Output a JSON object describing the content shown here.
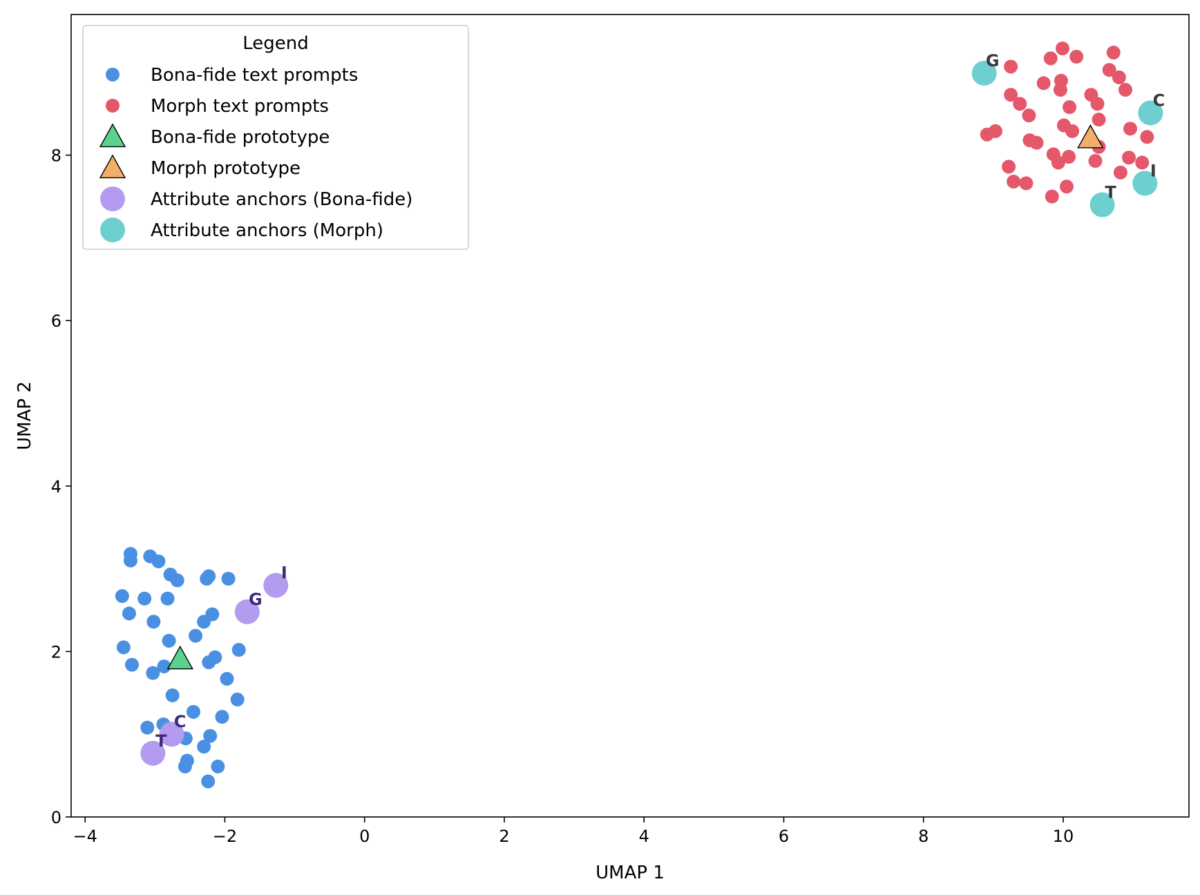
{
  "chart_data": {
    "type": "scatter",
    "xlabel": "UMAP 1",
    "ylabel": "UMAP 2",
    "xlim": [
      -4.2,
      11.8
    ],
    "ylim": [
      0,
      9.7
    ],
    "x_ticks": [
      -4,
      -2,
      0,
      2,
      4,
      6,
      8,
      10
    ],
    "y_ticks": [
      0,
      2,
      4,
      6,
      8
    ],
    "x_tick_labels": [
      "−4",
      "−2",
      "0",
      "2",
      "4",
      "6",
      "8",
      "10"
    ],
    "y_tick_labels": [
      "0",
      "2",
      "4",
      "6",
      "8"
    ],
    "grid": false,
    "legend": {
      "title": "Legend",
      "placement": "top-left",
      "entries": [
        {
          "label": "Bona-fide text prompts",
          "marker": "circle-small",
          "color": "#4a90e2"
        },
        {
          "label": "Morph text prompts",
          "marker": "circle-small",
          "color": "#e5576a"
        },
        {
          "label": "Bona-fide prototype",
          "marker": "triangle",
          "color": "#5bd18e"
        },
        {
          "label": "Morph prototype",
          "marker": "triangle",
          "color": "#f0b06a"
        },
        {
          "label": "Attribute anchors (Bona-fide)",
          "marker": "circle-large",
          "color": "#b39bf0"
        },
        {
          "label": "Attribute anchors (Morph)",
          "marker": "circle-large",
          "color": "#6dcfcf"
        }
      ]
    },
    "series": [
      {
        "name": "Bona-fide text prompts",
        "color": "#4a90e2",
        "points": [
          [
            -3.35,
            3.18
          ],
          [
            -3.35,
            3.1
          ],
          [
            -3.07,
            3.15
          ],
          [
            -2.95,
            3.09
          ],
          [
            -2.78,
            2.93
          ],
          [
            -2.68,
            2.86
          ],
          [
            -2.26,
            2.88
          ],
          [
            -2.23,
            2.91
          ],
          [
            -1.95,
            2.88
          ],
          [
            -3.47,
            2.67
          ],
          [
            -3.15,
            2.64
          ],
          [
            -2.82,
            2.64
          ],
          [
            -3.37,
            2.46
          ],
          [
            -3.02,
            2.36
          ],
          [
            -2.3,
            2.36
          ],
          [
            -2.18,
            2.45
          ],
          [
            -2.8,
            2.13
          ],
          [
            -2.42,
            2.19
          ],
          [
            -3.45,
            2.05
          ],
          [
            -1.8,
            2.02
          ],
          [
            -3.33,
            1.84
          ],
          [
            -2.87,
            1.82
          ],
          [
            -2.23,
            1.87
          ],
          [
            -2.14,
            1.93
          ],
          [
            -3.03,
            1.74
          ],
          [
            -1.97,
            1.67
          ],
          [
            -2.75,
            1.47
          ],
          [
            -1.82,
            1.42
          ],
          [
            -2.45,
            1.27
          ],
          [
            -2.04,
            1.21
          ],
          [
            -3.11,
            1.08
          ],
          [
            -2.88,
            1.12
          ],
          [
            -2.56,
            0.95
          ],
          [
            -2.21,
            0.98
          ],
          [
            -2.3,
            0.85
          ],
          [
            -2.54,
            0.68
          ],
          [
            -2.57,
            0.61
          ],
          [
            -2.1,
            0.61
          ],
          [
            -2.24,
            0.43
          ]
        ]
      },
      {
        "name": "Morph text prompts",
        "color": "#e5576a",
        "points": [
          [
            9.99,
            9.29
          ],
          [
            9.82,
            9.17
          ],
          [
            10.19,
            9.19
          ],
          [
            10.72,
            9.24
          ],
          [
            9.25,
            9.07
          ],
          [
            10.66,
            9.03
          ],
          [
            10.8,
            8.94
          ],
          [
            9.97,
            8.9
          ],
          [
            9.72,
            8.87
          ],
          [
            9.96,
            8.79
          ],
          [
            10.89,
            8.79
          ],
          [
            9.25,
            8.73
          ],
          [
            10.4,
            8.73
          ],
          [
            9.38,
            8.62
          ],
          [
            10.49,
            8.62
          ],
          [
            10.09,
            8.58
          ],
          [
            9.51,
            8.48
          ],
          [
            10.51,
            8.43
          ],
          [
            10.01,
            8.36
          ],
          [
            10.96,
            8.32
          ],
          [
            10.13,
            8.29
          ],
          [
            9.03,
            8.29
          ],
          [
            8.91,
            8.25
          ],
          [
            11.2,
            8.22
          ],
          [
            9.52,
            8.18
          ],
          [
            9.62,
            8.15
          ],
          [
            10.51,
            8.1
          ],
          [
            9.86,
            8.01
          ],
          [
            10.08,
            7.98
          ],
          [
            10.94,
            7.97
          ],
          [
            9.93,
            7.91
          ],
          [
            10.46,
            7.93
          ],
          [
            11.13,
            7.91
          ],
          [
            9.22,
            7.86
          ],
          [
            10.82,
            7.79
          ],
          [
            9.29,
            7.68
          ],
          [
            9.47,
            7.66
          ],
          [
            10.05,
            7.62
          ],
          [
            9.84,
            7.5
          ],
          [
            10.62,
            7.41
          ]
        ]
      },
      {
        "name": "Bona-fide prototype",
        "color": "#5bd18e",
        "points": [
          [
            -2.64,
            1.91
          ]
        ]
      },
      {
        "name": "Morph prototype",
        "color": "#f0b06a",
        "points": [
          [
            10.39,
            8.21
          ]
        ]
      },
      {
        "name": "Attribute anchors (Bona-fide)",
        "color": "#b39bf0",
        "label_color": "#3d2a7a",
        "points": [
          [
            -1.27,
            2.8
          ],
          [
            -1.68,
            2.48
          ],
          [
            -2.76,
            1.0
          ],
          [
            -3.03,
            0.77
          ]
        ],
        "labels": [
          "I",
          "G",
          "C",
          "T"
        ]
      },
      {
        "name": "Attribute anchors (Morph)",
        "color": "#6dcfcf",
        "label_color": "#3a3a3a",
        "points": [
          [
            8.87,
            8.99
          ],
          [
            11.25,
            8.51
          ],
          [
            11.17,
            7.66
          ],
          [
            10.56,
            7.4
          ]
        ],
        "labels": [
          "G",
          "C",
          "I",
          "T"
        ]
      }
    ]
  }
}
